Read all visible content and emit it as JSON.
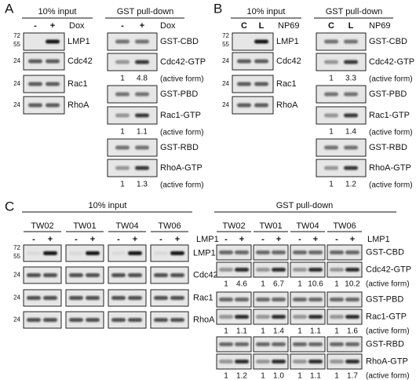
{
  "panels": [
    {
      "label": "A",
      "input": {
        "title": "10% input",
        "lanes": [
          "-",
          "+"
        ],
        "treatment": "Dox",
        "blots": [
          {
            "name": "LMP1",
            "markers": [
              "72",
              "55"
            ]
          },
          {
            "name": "Cdc42",
            "markers": [
              "24"
            ]
          },
          {
            "name": "Rac1",
            "markers": [
              "24"
            ]
          },
          {
            "name": "RhoA",
            "markers": [
              "24"
            ]
          }
        ]
      },
      "pulldown": {
        "title": "GST pull-down",
        "lanes": [
          "-",
          "+"
        ],
        "treatment": "Dox",
        "groups": [
          {
            "bait": "GST-CBD",
            "target": "Cdc42-GTP",
            "note": "(active form)",
            "quant": [
              "1",
              "4.8"
            ]
          },
          {
            "bait": "GST-PBD",
            "target": "Rac1-GTP",
            "note": "(active form)",
            "quant": [
              "1",
              "1.1"
            ]
          },
          {
            "bait": "GST-RBD",
            "target": "RhoA-GTP",
            "note": "(active form)",
            "quant": [
              "1",
              "1.3"
            ]
          }
        ]
      }
    },
    {
      "label": "B",
      "input": {
        "title": "10% input",
        "lanes": [
          "C",
          "L"
        ],
        "treatment": "NP69",
        "blots": [
          {
            "name": "LMP1",
            "markers": [
              "72",
              "55"
            ]
          },
          {
            "name": "Cdc42",
            "markers": [
              "24"
            ]
          },
          {
            "name": "Rac1",
            "markers": [
              "24"
            ]
          },
          {
            "name": "RhoA",
            "markers": [
              "24"
            ]
          }
        ]
      },
      "pulldown": {
        "title": "GST pull-down",
        "lanes": [
          "C",
          "L"
        ],
        "treatment": "NP69",
        "groups": [
          {
            "bait": "GST-CBD",
            "target": "Cdc42-GTP",
            "note": "(active form)",
            "quant": [
              "1",
              "3.3"
            ]
          },
          {
            "bait": "GST-PBD",
            "target": "Rac1-GTP",
            "note": "(active form)",
            "quant": [
              "1",
              "1.4"
            ]
          },
          {
            "bait": "GST-RBD",
            "target": "RhoA-GTP",
            "note": "(active form)",
            "quant": [
              "1",
              "1.2"
            ]
          }
        ]
      }
    },
    {
      "label": "C",
      "input": {
        "title": "10% input",
        "cell_lines": [
          "TW02",
          "TW01",
          "TW04",
          "TW06"
        ],
        "lanes": [
          "-",
          "+"
        ],
        "treatment": "LMP1",
        "blots": [
          {
            "name": "LMP1",
            "markers": [
              "72",
              "55"
            ]
          },
          {
            "name": "Cdc42",
            "markers": [
              "24"
            ]
          },
          {
            "name": "Rac1",
            "markers": [
              "24"
            ]
          },
          {
            "name": "RhoA",
            "markers": [
              "24"
            ]
          }
        ]
      },
      "pulldown": {
        "title": "GST pull-down",
        "cell_lines": [
          "TW02",
          "TW01",
          "TW04",
          "TW06"
        ],
        "lanes": [
          "-",
          "+"
        ],
        "treatment": "LMP1",
        "groups": [
          {
            "bait": "GST-CBD",
            "target": "Cdc42-GTP",
            "note": "(active form)",
            "quant": [
              [
                "1",
                "4.6"
              ],
              [
                "1",
                "6.7"
              ],
              [
                "1",
                "10.6"
              ],
              [
                "1",
                "10.2"
              ]
            ]
          },
          {
            "bait": "GST-PBD",
            "target": "Rac1-GTP",
            "note": "(active form)",
            "quant": [
              [
                "1",
                "1.1"
              ],
              [
                "1",
                "1.4"
              ],
              [
                "1",
                "1.1"
              ],
              [
                "1",
                "1.6"
              ]
            ]
          },
          {
            "bait": "GST-RBD",
            "target": "RhoA-GTP",
            "note": "(active form)",
            "quant": [
              [
                "1",
                "1.2"
              ],
              [
                "1",
                "1.0"
              ],
              [
                "1",
                "1.1"
              ],
              [
                "1",
                "1.7"
              ]
            ]
          }
        ]
      }
    }
  ]
}
